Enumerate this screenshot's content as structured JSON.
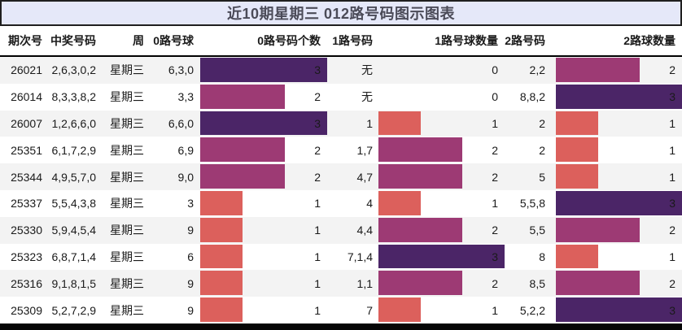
{
  "title": "近10期星期三 012路号码图示图表",
  "header": {
    "columns": [
      "期次号",
      "中奖号码",
      "周",
      "0路号球",
      "0路号码个数",
      "1路号码",
      "1路号球数量",
      "2路号码",
      "2路球数量"
    ]
  },
  "legend_colors": {
    "count_1": "#DC605C",
    "count_2": "#9D3A74",
    "count_3": "#4B2567"
  },
  "style_colors": {
    "title_background": "#e5e8f9",
    "title_text": "#4b4b58",
    "row_alt_background": "#f3f3f3",
    "border": "#1f1f1f"
  },
  "rows": [
    {
      "period": "26021",
      "win_numbers": "2,6,3,0,2",
      "week": "星期三",
      "road0": "6,3,0",
      "road0_count": "3",
      "road1": "无",
      "road1_count": "0",
      "road2": "2,2",
      "road2_count": "2"
    },
    {
      "period": "26014",
      "win_numbers": "8,3,3,8,2",
      "week": "星期三",
      "road0": "3,3",
      "road0_count": "2",
      "road1": "无",
      "road1_count": "0",
      "road2": "8,8,2",
      "road2_count": "3"
    },
    {
      "period": "26007",
      "win_numbers": "1,2,6,6,0",
      "week": "星期三",
      "road0": "6,6,0",
      "road0_count": "3",
      "road1": "1",
      "road1_count": "1",
      "road2": "2",
      "road2_count": "1"
    },
    {
      "period": "25351",
      "win_numbers": "6,1,7,2,9",
      "week": "星期三",
      "road0": "6,9",
      "road0_count": "2",
      "road1": "1,7",
      "road1_count": "2",
      "road2": "2",
      "road2_count": "1"
    },
    {
      "period": "25344",
      "win_numbers": "4,9,5,7,0",
      "week": "星期三",
      "road0": "9,0",
      "road0_count": "2",
      "road1": "4,7",
      "road1_count": "2",
      "road2": "5",
      "road2_count": "1"
    },
    {
      "period": "25337",
      "win_numbers": "5,5,4,3,8",
      "week": "星期三",
      "road0": "3",
      "road0_count": "1",
      "road1": "4",
      "road1_count": "1",
      "road2": "5,5,8",
      "road2_count": "3"
    },
    {
      "period": "25330",
      "win_numbers": "5,9,4,5,4",
      "week": "星期三",
      "road0": "9",
      "road0_count": "1",
      "road1": "4,4",
      "road1_count": "2",
      "road2": "5,5",
      "road2_count": "2"
    },
    {
      "period": "25323",
      "win_numbers": "6,8,7,1,4",
      "week": "星期三",
      "road0": "6",
      "road0_count": "1",
      "road1": "7,1,4",
      "road1_count": "3",
      "road2": "8",
      "road2_count": "1"
    },
    {
      "period": "25316",
      "win_numbers": "9,1,8,1,5",
      "week": "星期三",
      "road0": "9",
      "road0_count": "1",
      "road1": "1,1",
      "road1_count": "2",
      "road2": "8,5",
      "road2_count": "2"
    },
    {
      "period": "25309",
      "win_numbers": "5,2,7,2,9",
      "week": "星期三",
      "road0": "9",
      "road0_count": "1",
      "road1": "7",
      "road1_count": "1",
      "road2": "5,2,2",
      "road2_count": "3"
    }
  ],
  "chart_data": {
    "type": "table",
    "title": "近10期星期三 012路号码图示图表",
    "columns": [
      "期次号",
      "中奖号码",
      "周",
      "0路号球",
      "0路号码个数",
      "1路号码",
      "1路号球数量",
      "2路号码",
      "2路球数量"
    ],
    "rows": [
      [
        "26021",
        "2,6,3,0,2",
        "星期三",
        "6,3,0",
        3,
        "无",
        0,
        "2,2",
        2
      ],
      [
        "26014",
        "8,3,3,8,2",
        "星期三",
        "3,3",
        2,
        "无",
        0,
        "8,8,2",
        3
      ],
      [
        "26007",
        "1,2,6,6,0",
        "星期三",
        "6,6,0",
        3,
        "1",
        1,
        "2",
        1
      ],
      [
        "25351",
        "6,1,7,2,9",
        "星期三",
        "6,9",
        2,
        "1,7",
        2,
        "2",
        1
      ],
      [
        "25344",
        "4,9,5,7,0",
        "星期三",
        "9,0",
        2,
        "4,7",
        2,
        "5",
        1
      ],
      [
        "25337",
        "5,5,4,3,8",
        "星期三",
        "3",
        1,
        "4",
        1,
        "5,5,8",
        3
      ],
      [
        "25330",
        "5,9,4,5,4",
        "星期三",
        "9",
        1,
        "4,4",
        2,
        "5,5",
        2
      ],
      [
        "25323",
        "6,8,7,1,4",
        "星期三",
        "6",
        1,
        "7,1,4",
        3,
        "8",
        1
      ],
      [
        "25316",
        "9,1,8,1,5",
        "星期三",
        "9",
        1,
        "1,1",
        2,
        "8,5",
        2
      ],
      [
        "25309",
        "5,2,7,2,9",
        "星期三",
        "9",
        1,
        "7",
        1,
        "5,2,2",
        3
      ]
    ],
    "bar_columns": {
      "0路号码个数": [
        3,
        2,
        3,
        2,
        2,
        1,
        1,
        1,
        1,
        1
      ],
      "1路号球数量": [
        0,
        0,
        1,
        2,
        2,
        1,
        2,
        3,
        2,
        1
      ],
      "2路球数量": [
        2,
        3,
        1,
        1,
        1,
        3,
        2,
        1,
        2,
        3
      ]
    },
    "bar_scale_max": 3,
    "bar_colors_by_value": {
      "1": "#DC605C",
      "2": "#9D3A74",
      "3": "#4B2567"
    },
    "legend_position": "none",
    "grid": false
  }
}
